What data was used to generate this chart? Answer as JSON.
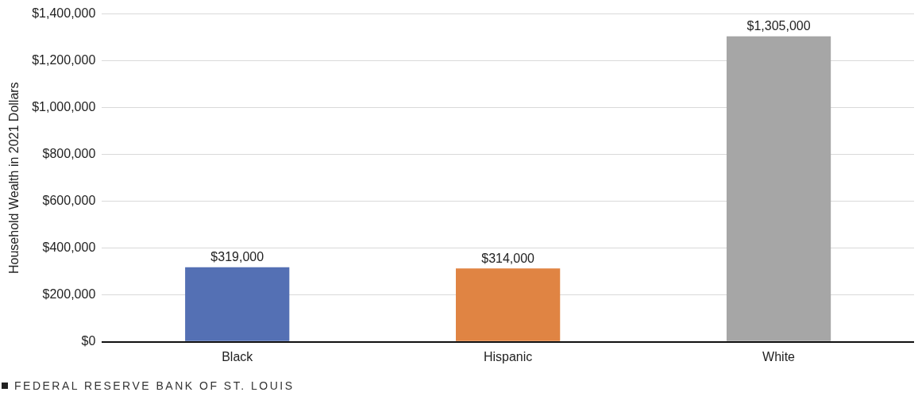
{
  "chart_data": {
    "type": "bar",
    "ylabel": "Household Wealth in 2021 Dollars",
    "categories": [
      "Black",
      "Hispanic",
      "White"
    ],
    "values": [
      319000,
      314000,
      1305000
    ],
    "colors": [
      "#5470b4",
      "#e08443",
      "#a6a6a6"
    ],
    "value_labels": [
      "$319,000",
      "$314,000",
      "$1,305,000"
    ],
    "ylim": [
      0,
      1400000
    ],
    "yticks": [
      {
        "value": 0,
        "label": "$0"
      },
      {
        "value": 200000,
        "label": "$200,000"
      },
      {
        "value": 400000,
        "label": "$400,000"
      },
      {
        "value": 600000,
        "label": "$600,000"
      },
      {
        "value": 800000,
        "label": "$800,000"
      },
      {
        "value": 1000000,
        "label": "$1,000,000"
      },
      {
        "value": 1200000,
        "label": "$1,200,000"
      },
      {
        "value": 1400000,
        "label": "$1,400,000"
      }
    ],
    "grid": "y",
    "legend": false,
    "annotations": [
      "FEDERAL RESERVE BANK OF ST. LOUIS"
    ]
  }
}
